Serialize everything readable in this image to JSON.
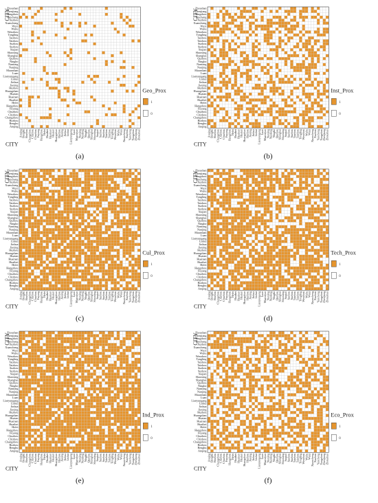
{
  "colors": {
    "one": "#e6952e",
    "zero": "#ffffff",
    "grid": "#c9c9c9",
    "frame": "#444444"
  },
  "axis_title": "CITY",
  "legend_values": [
    "1",
    "0"
  ],
  "cities": [
    "Anqing",
    "Bengbu",
    "Bozhou",
    "Changzhou",
    "Chizhou",
    "Chuzhou",
    "Fuyang",
    "Hangzhou",
    "Hefei",
    "Huaibei",
    "Huainan",
    "Huaian",
    "Huangshan",
    "Huzhou",
    "Jiaxing",
    "Jinhua",
    "Lishui",
    "Lianyungang",
    "Luan",
    "Maanshan",
    "Nanjing",
    "Nantong",
    "Ningbo",
    "Quzhou",
    "Shanghai",
    "Shaoxing",
    "Suqian",
    "Suzhou",
    "Suzhou",
    "Taizhou",
    "Taizhou",
    "Tongling",
    "Wenzhou",
    "Wuhu",
    "Wuxi",
    "Xuancheng",
    "Xuzhou",
    "Yancheng",
    "Yangzhou",
    "Zhenjiang",
    "Zhoushan"
  ],
  "chart_data": [
    {
      "type": "heatmap",
      "panel": "(a)",
      "legend_title": "Geo_Prox",
      "density": 0.12,
      "seed": 11
    },
    {
      "type": "heatmap",
      "panel": "(b)",
      "legend_title": "Inst_Prox",
      "density": 0.45,
      "seed": 23
    },
    {
      "type": "heatmap",
      "panel": "(c)",
      "legend_title": "Cul_Prox",
      "density": 0.78,
      "seed": 37
    },
    {
      "type": "heatmap",
      "panel": "(d)",
      "legend_title": "Tech_Prox",
      "density": 0.72,
      "seed": 51
    },
    {
      "type": "heatmap",
      "panel": "(e)",
      "legend_title": "Ind_Prox",
      "density": 0.82,
      "seed": 67
    },
    {
      "type": "heatmap",
      "panel": "(f)",
      "legend_title": "Eco_Prox",
      "density": 0.55,
      "seed": 83
    }
  ]
}
